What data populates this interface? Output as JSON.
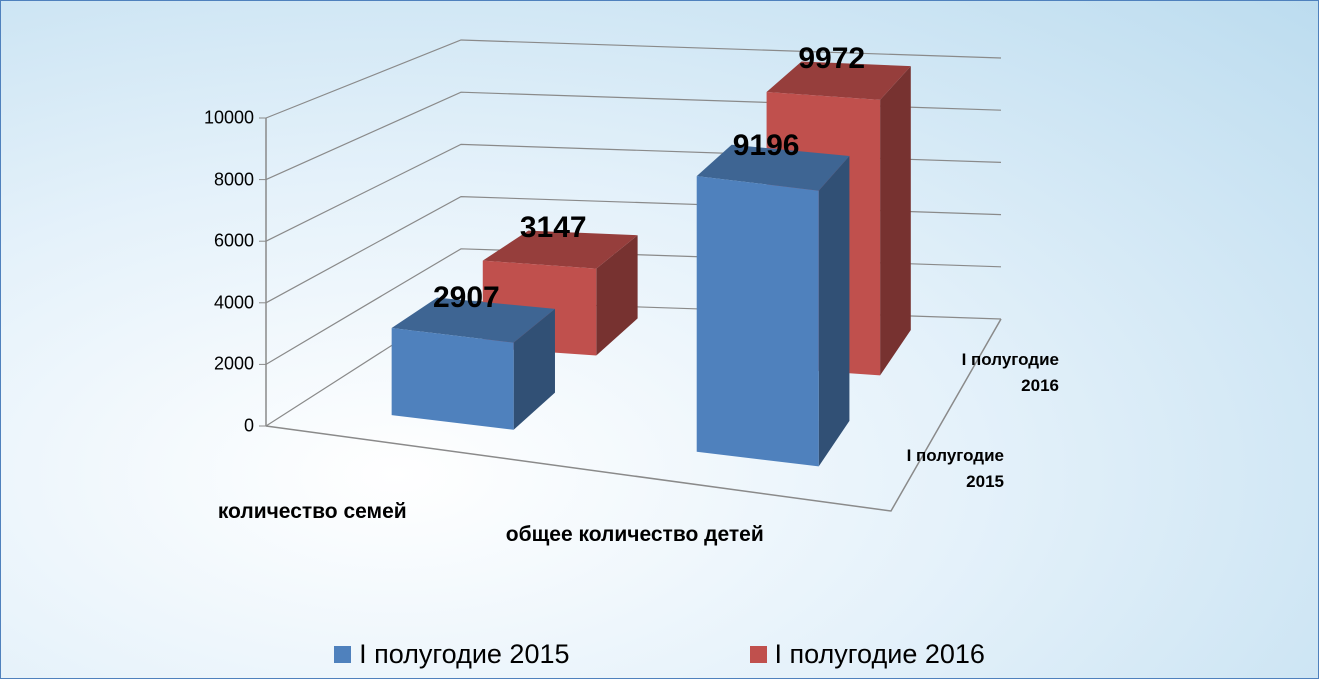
{
  "chart_data": {
    "type": "bar3d",
    "categories": [
      "количество семей",
      "общее количество детей"
    ],
    "series": [
      {
        "name": "I полугодие 2015",
        "color": "#4f81bd",
        "values": [
          2907,
          9196
        ]
      },
      {
        "name": "I полугодие 2016",
        "color": "#c0504d",
        "values": [
          3147,
          9972
        ]
      }
    ],
    "ylim": [
      0,
      10000
    ],
    "yticks": [
      0,
      2000,
      4000,
      6000,
      8000,
      10000
    ],
    "grid": true,
    "legend": "bottom"
  }
}
